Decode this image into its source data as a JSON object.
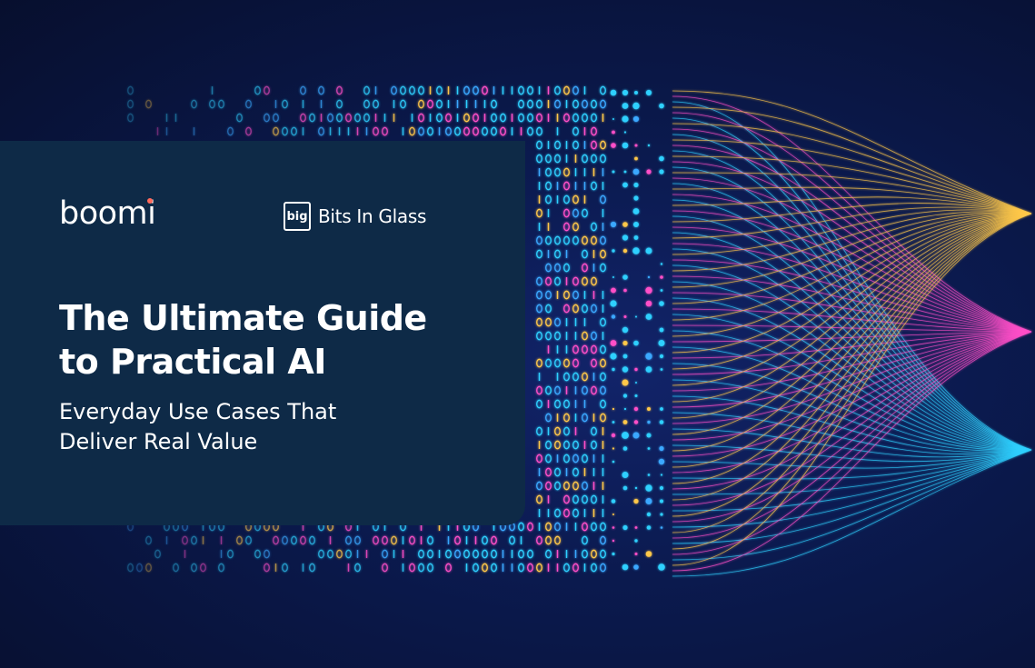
{
  "logos": {
    "boomi": "boomi",
    "partner_mark": "big",
    "partner_name": "Bits In Glass"
  },
  "cover": {
    "title_line1": "The Ultimate Guide",
    "title_line2": "to Practical AI",
    "subtitle_line1": "Everyday Use Cases That",
    "subtitle_line2": "Deliver Real Value"
  },
  "colors": {
    "background": "#0a1433",
    "panel": "#0e2a47",
    "boomi_dot": "#ff6a5c",
    "stream_gold": "#ffc84a",
    "stream_pink": "#ff4fc8",
    "stream_cyan": "#2fd0ff"
  }
}
